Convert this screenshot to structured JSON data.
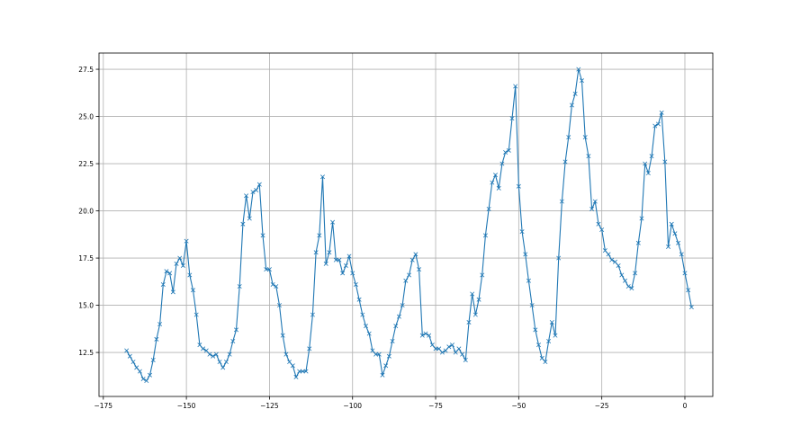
{
  "chart_data": {
    "type": "line",
    "title": "",
    "xlabel": "",
    "ylabel": "",
    "xlim": [
      -176.3,
      8.4
    ],
    "ylim": [
      10.17,
      28.36
    ],
    "grid": true,
    "marker": "x",
    "color": "#1f77b4",
    "xticks": [
      -175,
      -150,
      -125,
      -100,
      -75,
      -50,
      -25,
      0
    ],
    "xtick_labels": [
      "−175",
      "−150",
      "−125",
      "−100",
      "−75",
      "−50",
      "−25",
      "0"
    ],
    "yticks": [
      12.5,
      15.0,
      17.5,
      20.0,
      22.5,
      25.0,
      27.5
    ],
    "ytick_labels": [
      "12.5",
      "15.0",
      "17.5",
      "20.0",
      "22.5",
      "25.0",
      "27.5"
    ],
    "x_start": -168,
    "x_step": 1,
    "values": [
      12.6,
      12.3,
      12.0,
      11.7,
      11.5,
      11.1,
      11.0,
      11.3,
      12.1,
      13.2,
      14.0,
      16.1,
      16.8,
      16.7,
      15.7,
      17.2,
      17.5,
      17.1,
      18.4,
      16.6,
      15.8,
      14.5,
      12.9,
      12.7,
      12.6,
      12.4,
      12.3,
      12.4,
      12.0,
      11.7,
      12.0,
      12.4,
      13.1,
      13.7,
      16.0,
      19.3,
      20.8,
      19.6,
      21.0,
      21.1,
      21.4,
      18.7,
      16.9,
      16.9,
      16.1,
      16.0,
      15.0,
      13.4,
      12.4,
      12.0,
      11.8,
      11.2,
      11.5,
      11.5,
      11.5,
      12.7,
      14.5,
      17.8,
      18.7,
      21.8,
      17.2,
      17.8,
      19.4,
      17.4,
      17.4,
      16.7,
      17.1,
      17.6,
      16.7,
      16.1,
      15.3,
      14.5,
      13.9,
      13.5,
      12.6,
      12.4,
      12.4,
      11.3,
      11.8,
      12.3,
      13.1,
      13.9,
      14.4,
      15.0,
      16.3,
      16.6,
      17.4,
      17.7,
      16.9,
      13.4,
      13.5,
      13.4,
      12.9,
      12.7,
      12.7,
      12.5,
      12.6,
      12.8,
      12.9,
      12.5,
      12.7,
      12.4,
      12.1,
      14.1,
      15.6,
      14.5,
      15.3,
      16.6,
      18.7,
      20.1,
      21.5,
      21.9,
      21.2,
      22.5,
      23.1,
      23.2,
      24.9,
      26.6,
      21.3,
      18.9,
      17.7,
      16.3,
      15.0,
      13.7,
      12.9,
      12.2,
      12.0,
      13.1,
      14.1,
      13.4,
      17.5,
      20.5,
      22.6,
      23.9,
      25.6,
      26.2,
      27.5,
      26.9,
      23.9,
      22.9,
      20.1,
      20.5,
      19.3,
      19.0,
      17.9,
      17.7,
      17.4,
      17.3,
      17.1,
      16.6,
      16.3,
      16.0,
      15.9,
      16.7,
      18.3,
      19.6,
      22.5,
      22.0,
      22.9,
      24.5,
      24.6,
      25.2,
      22.6,
      18.1,
      19.3,
      18.8,
      18.3,
      17.7,
      16.7,
      15.8,
      14.9
    ]
  }
}
